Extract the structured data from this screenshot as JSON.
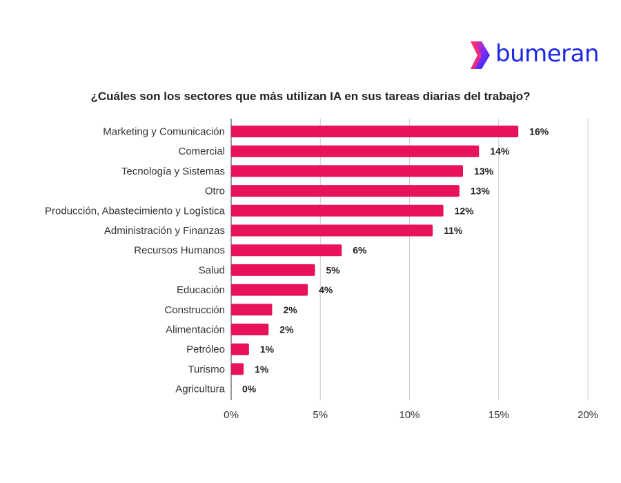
{
  "brand": {
    "name": "bumeran",
    "colors": {
      "wordmark": "#1d27e6",
      "icon_gradient": [
        "#ff2d6f",
        "#7a2cff",
        "#1d27e6"
      ]
    }
  },
  "chart_data": {
    "type": "bar",
    "orientation": "horizontal",
    "title": "¿Cuáles son los sectores que más utilizan IA en sus tareas diarias del trabajo?",
    "categories": [
      "Marketing y Comunicación",
      "Comercial",
      "Tecnología y Sistemas",
      "Otro",
      "Producción, Abastecimiento y Logística",
      "Administración y Finanzas",
      "Recursos Humanos",
      "Salud",
      "Educación",
      "Construcción",
      "Alimentación",
      "Petróleo",
      "Turismo",
      "Agricultura"
    ],
    "values": [
      16.1,
      13.9,
      13.0,
      12.8,
      11.9,
      11.3,
      6.2,
      4.7,
      4.3,
      2.3,
      2.1,
      1.0,
      0.7,
      0.0
    ],
    "data_labels": [
      "16%",
      "14%",
      "13%",
      "13%",
      "12%",
      "11%",
      "6%",
      "5%",
      "4%",
      "2%",
      "2%",
      "1%",
      "1%",
      "0%"
    ],
    "xlim": [
      0,
      20
    ],
    "xticks": [
      0,
      5,
      10,
      15,
      20
    ],
    "xtick_labels": [
      "0%",
      "5%",
      "10%",
      "15%",
      "20%"
    ],
    "grid": "vertical",
    "legend": "none",
    "bar_color": "#e8125c"
  }
}
